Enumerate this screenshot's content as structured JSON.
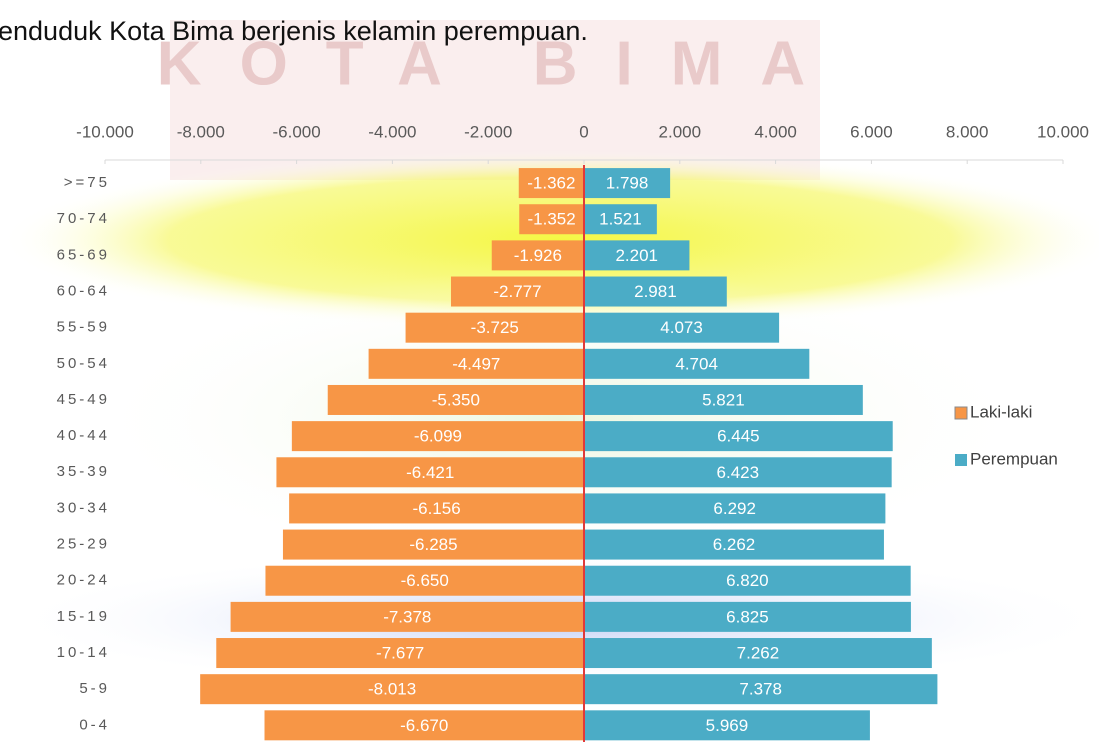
{
  "text": "enduduk Kota Bima berjenis kelamin perempuan.",
  "watermark": "KOTA BIMA",
  "chart_data": {
    "type": "bar",
    "orientation": "horizontal",
    "categories": [
      ">=75",
      "70-74",
      "65-69",
      "60-64",
      "55-59",
      "50-54",
      "45-49",
      "40-44",
      "35-39",
      "30-34",
      "25-29",
      "20-24",
      "15-19",
      "10-14",
      "5-9",
      "0-4"
    ],
    "series": [
      {
        "name": "Laki-laki",
        "color": "#f79646",
        "values": [
          -1362,
          -1352,
          -1926,
          -2777,
          -3725,
          -4497,
          -5350,
          -6099,
          -6421,
          -6156,
          -6285,
          -6650,
          -7378,
          -7677,
          -8013,
          -6670
        ],
        "value_labels": [
          "-1.362",
          "-1.352",
          "-1.926",
          "-2.777",
          "-3.725",
          "-4.497",
          "-5.350",
          "-6.099",
          "-6.421",
          "-6.156",
          "-6.285",
          "-6.650",
          "-7.378",
          "-7.677",
          "-8.013",
          "-6.670"
        ]
      },
      {
        "name": "Perempuan",
        "color": "#4bacc6",
        "values": [
          1798,
          1521,
          2201,
          2981,
          4073,
          4704,
          5821,
          6445,
          6423,
          6292,
          6262,
          6820,
          6825,
          7262,
          7378,
          5969
        ],
        "value_labels": [
          "1.798",
          "1.521",
          "2.201",
          "2.981",
          "4.073",
          "4.704",
          "5.821",
          "6.445",
          "6.423",
          "6.292",
          "6.262",
          "6.820",
          "6.825",
          "7.262",
          "7.378",
          "5.969"
        ]
      }
    ],
    "xlim": [
      -10000,
      10000
    ],
    "xticks": [
      {
        "value": -10000,
        "label": "-10.000"
      },
      {
        "value": -8000,
        "label": "-8.000"
      },
      {
        "value": -6000,
        "label": "-6.000"
      },
      {
        "value": -4000,
        "label": "-4.000"
      },
      {
        "value": -2000,
        "label": "-2.000"
      },
      0,
      {
        "value": 2000,
        "label": "2.000"
      },
      {
        "value": 4000,
        "label": "4.000"
      },
      {
        "value": 6000,
        "label": "6.000"
      },
      {
        "value": 8000,
        "label": "8.000"
      },
      {
        "value": 10000,
        "label": "10.000"
      }
    ],
    "grid": false,
    "legend": "right"
  }
}
